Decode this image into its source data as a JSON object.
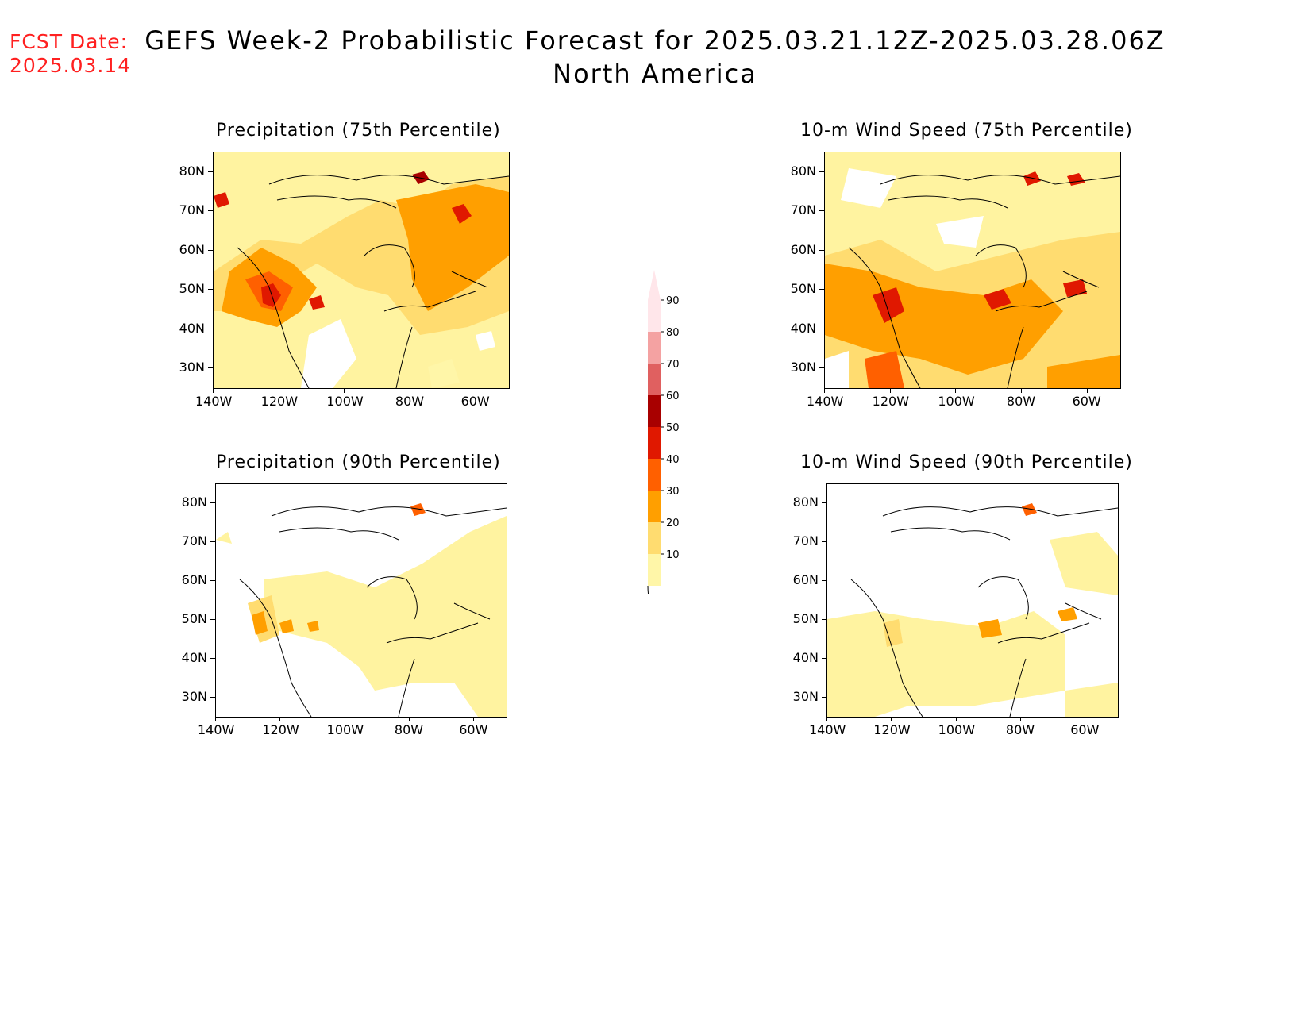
{
  "fcst_date": {
    "line1": "FCST Date:",
    "line2": "2025.03.14",
    "color": "#ff2020"
  },
  "title": {
    "line1": "GEFS Week-2 Probabilistic Forecast for 2025.03.21.12Z-2025.03.28.06Z",
    "line2": "North America"
  },
  "panels": [
    {
      "id": "precip75",
      "title": "Precipitation (75th Percentile)"
    },
    {
      "id": "wind75",
      "title": "10-m Wind Speed (75th Percentile)"
    },
    {
      "id": "precip90",
      "title": "Precipitation (90th Percentile)"
    },
    {
      "id": "wind90",
      "title": "10-m Wind Speed (90th Percentile)"
    }
  ],
  "axes": {
    "lat_labels": [
      "80N",
      "70N",
      "60N",
      "50N",
      "40N",
      "30N"
    ],
    "lon_labels": [
      "140W",
      "120W",
      "100W",
      "80W",
      "60W"
    ],
    "lat_range": [
      25,
      85
    ],
    "lon_range": [
      -140,
      -50
    ]
  },
  "colorbar": {
    "labels": [
      "90",
      "80",
      "70",
      "60",
      "50",
      "40",
      "30",
      "20",
      "10"
    ],
    "colors": [
      "#ffe6ea",
      "#f4a2a2",
      "#e06060",
      "#a80000",
      "#e01800",
      "#ff6000",
      "#ff9f00",
      "#ffdc70",
      "#fff6a8"
    ]
  }
}
